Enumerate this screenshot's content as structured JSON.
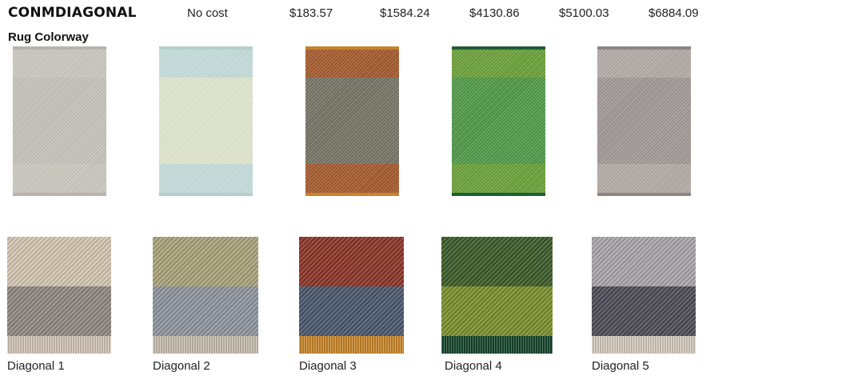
{
  "product": {
    "code": "CONMDIAGONAL",
    "prices": [
      "No cost",
      "$183.57",
      "$1584.24",
      "$4130.86",
      "$5100.03",
      "$6884.09"
    ]
  },
  "section": {
    "label": "Rug Colorway"
  },
  "rugs": [
    {
      "name": "Diagonal 1",
      "colors": {
        "outer": "#cfcbc3",
        "middle": "#c8c5bf",
        "fringe": "#b8b4ac"
      }
    },
    {
      "name": "Diagonal 2",
      "colors": {
        "outer": "#c9e2e0",
        "middle": "#e5ecd2",
        "fringe": "#b4cfcc"
      }
    },
    {
      "name": "Diagonal 3",
      "colors": {
        "outer": "#a65a2c",
        "middle": "#757465",
        "fringe": "#c6842c"
      }
    },
    {
      "name": "Diagonal 4",
      "colors": {
        "outer": "#6aa238",
        "middle": "#4f9a48",
        "fringe": "#1f5e34"
      }
    },
    {
      "name": "Diagonal 5",
      "colors": {
        "outer": "#b5ada9",
        "middle": "#a29a98",
        "fringe": "#8c8684"
      }
    }
  ],
  "swatches": [
    {
      "label": "Diagonal 1",
      "colors": {
        "top": "#d4c5b0",
        "bottom": "#8e8680",
        "fringe": "#d8cbbb"
      }
    },
    {
      "label": "Diagonal 2",
      "colors": {
        "top": "#a9a378",
        "bottom": "#8e939c",
        "fringe": "#cfc4b4"
      }
    },
    {
      "label": "Diagonal 3",
      "colors": {
        "top": "#8a3324",
        "bottom": "#48566a",
        "fringe": "#d08a2a"
      }
    },
    {
      "label": "Diagonal 4",
      "colors": {
        "top": "#3a5a26",
        "bottom": "#7a8e2a",
        "fringe": "#15482e"
      }
    },
    {
      "label": "Diagonal 5",
      "colors": {
        "top": "#a8a4a8",
        "bottom": "#4c4a54",
        "fringe": "#ddd2c6"
      }
    }
  ]
}
